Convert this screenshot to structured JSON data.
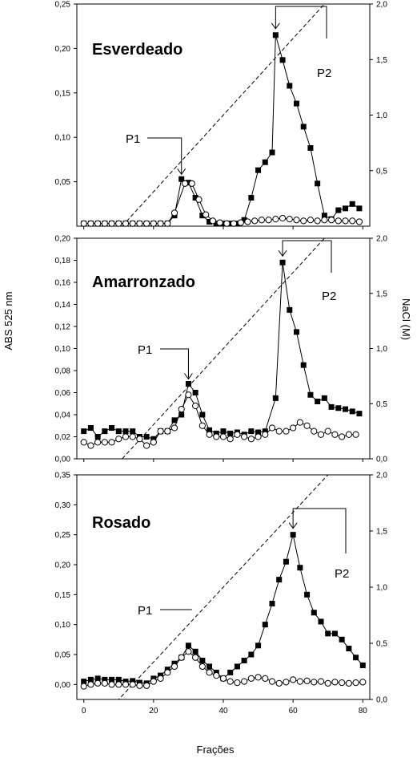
{
  "x_axis": {
    "label": "Frações",
    "ticks": [
      0,
      20,
      40,
      60,
      80
    ],
    "range": [
      -2,
      82
    ]
  },
  "left_axis_label": "ABS 525 nm",
  "right_axis_label": "NaCl (M)",
  "chart_data": [
    {
      "type": "line",
      "title": "Esverdeado",
      "xlabel": "Frações",
      "ylabel": "ABS 525 nm",
      "y2label": "NaCl (M)",
      "ylim": [
        0,
        0.25
      ],
      "y_ticks": [
        "0,05",
        "0,10",
        "0,15",
        "0,20",
        "0,25"
      ],
      "y2lim": [
        0,
        2.0
      ],
      "y2_ticks": [
        "0,5",
        "1,0",
        "1,5",
        "2,0"
      ],
      "series": [
        {
          "marker": "filled-square",
          "x": [
            0,
            2,
            4,
            6,
            8,
            10,
            12,
            14,
            16,
            18,
            20,
            22,
            24,
            26,
            28,
            30,
            32,
            34,
            36,
            38,
            40,
            42,
            44,
            46,
            48,
            50,
            52,
            54,
            55,
            57,
            59,
            61,
            63,
            65,
            67,
            69,
            71,
            73,
            75,
            77,
            79
          ],
          "y": [
            0.003,
            0.003,
            0.003,
            0.003,
            0.003,
            0.003,
            0.003,
            0.003,
            0.003,
            0.003,
            0.003,
            0.003,
            0.003,
            0.012,
            0.053,
            0.049,
            0.032,
            0.012,
            0.005,
            0.003,
            0.003,
            0.003,
            0.003,
            0.007,
            0.032,
            0.063,
            0.072,
            0.083,
            0.215,
            0.187,
            0.158,
            0.138,
            0.112,
            0.088,
            0.048,
            0.012,
            0.008,
            0.018,
            0.02,
            0.025,
            0.02
          ]
        },
        {
          "marker": "open-circle",
          "x": [
            0,
            2,
            4,
            6,
            8,
            10,
            12,
            14,
            16,
            18,
            20,
            22,
            24,
            26,
            29,
            31,
            33,
            35,
            37,
            39,
            41,
            43,
            45,
            47,
            49,
            51,
            53,
            55,
            57,
            59,
            61,
            63,
            65,
            67,
            69,
            71,
            73,
            75,
            77,
            79
          ],
          "y": [
            0.003,
            0.003,
            0.003,
            0.003,
            0.003,
            0.003,
            0.003,
            0.003,
            0.003,
            0.003,
            0.003,
            0.003,
            0.003,
            0.015,
            0.048,
            0.048,
            0.03,
            0.013,
            0.006,
            0.004,
            0.003,
            0.003,
            0.004,
            0.005,
            0.006,
            0.007,
            0.007,
            0.008,
            0.009,
            0.008,
            0.007,
            0.006,
            0.007,
            0.006,
            0.007,
            0.007,
            0.006,
            0.006,
            0.006,
            0.005
          ]
        }
      ],
      "gradient": {
        "x": [
          0,
          11,
          69,
          80
        ],
        "y": [
          0,
          0,
          2.0,
          2.0
        ]
      },
      "annotations": [
        {
          "text": "P1",
          "peak_x": 28
        },
        {
          "text": "P2",
          "peak_x": 55
        }
      ]
    },
    {
      "type": "line",
      "title": "Amarronzado",
      "xlabel": "Frações",
      "ylabel": "ABS 525 nm",
      "y2label": "NaCl (M)",
      "ylim": [
        0,
        0.2
      ],
      "y_ticks": [
        "0,00",
        "0,02",
        "0,04",
        "0,06",
        "0,08",
        "0,10",
        "0,12",
        "0,14",
        "0,16",
        "0,18",
        "0,20"
      ],
      "y2lim": [
        0,
        2.0
      ],
      "y2_ticks": [
        "0,0",
        "0,5",
        "1,0",
        "1,5",
        "2,0"
      ],
      "series": [
        {
          "marker": "filled-square",
          "x": [
            0,
            2,
            4,
            6,
            8,
            10,
            12,
            14,
            16,
            18,
            20,
            22,
            24,
            26,
            28,
            30,
            32,
            34,
            36,
            38,
            40,
            42,
            44,
            46,
            48,
            50,
            52,
            55,
            57,
            59,
            61,
            63,
            65,
            67,
            69,
            71,
            73,
            75,
            77,
            79
          ],
          "y": [
            0.025,
            0.028,
            0.02,
            0.025,
            0.028,
            0.025,
            0.025,
            0.025,
            0.02,
            0.02,
            0.018,
            0.025,
            0.025,
            0.035,
            0.04,
            0.068,
            0.06,
            0.04,
            0.026,
            0.023,
            0.025,
            0.023,
            0.024,
            0.022,
            0.025,
            0.024,
            0.025,
            0.055,
            0.178,
            0.135,
            0.115,
            0.085,
            0.058,
            0.052,
            0.055,
            0.047,
            0.046,
            0.045,
            0.043,
            0.041
          ]
        },
        {
          "marker": "open-circle",
          "x": [
            0,
            2,
            4,
            6,
            8,
            10,
            12,
            14,
            16,
            18,
            20,
            22,
            24,
            26,
            28,
            30,
            32,
            34,
            36,
            38,
            40,
            42,
            44,
            46,
            48,
            50,
            52,
            54,
            56,
            58,
            60,
            62,
            64,
            66,
            68,
            70,
            72,
            74,
            76,
            78
          ],
          "y": [
            0.015,
            0.012,
            0.015,
            0.015,
            0.015,
            0.018,
            0.02,
            0.02,
            0.018,
            0.012,
            0.015,
            0.025,
            0.025,
            0.028,
            0.045,
            0.058,
            0.048,
            0.03,
            0.022,
            0.02,
            0.02,
            0.018,
            0.022,
            0.02,
            0.018,
            0.02,
            0.022,
            0.028,
            0.025,
            0.025,
            0.028,
            0.033,
            0.03,
            0.025,
            0.022,
            0.025,
            0.022,
            0.02,
            0.022,
            0.022
          ]
        }
      ],
      "gradient": {
        "x": [
          0,
          11,
          69,
          80
        ],
        "y": [
          0,
          0,
          2.0,
          2.0
        ]
      },
      "annotations": [
        {
          "text": "P1",
          "peak_x": 30
        },
        {
          "text": "P2",
          "peak_x": 57
        }
      ]
    },
    {
      "type": "line",
      "title": "Rosado",
      "xlabel": "Frações",
      "ylabel": "ABS 525 nm",
      "y2label": "NaCl (M)",
      "ylim": [
        -0.025,
        0.35
      ],
      "y_ticks": [
        "0,00",
        "0,05",
        "0,10",
        "0,15",
        "0,20",
        "0,25",
        "0,30",
        "0,35"
      ],
      "y2lim": [
        0,
        2.0
      ],
      "y2_ticks": [
        "0,0",
        "0,5",
        "1,0",
        "1,5",
        "2,0"
      ],
      "series": [
        {
          "marker": "filled-square",
          "x": [
            0,
            2,
            4,
            6,
            8,
            10,
            12,
            14,
            16,
            18,
            20,
            22,
            24,
            26,
            28,
            30,
            32,
            34,
            36,
            38,
            40,
            42,
            44,
            46,
            48,
            50,
            52,
            54,
            56,
            58,
            60,
            62,
            64,
            66,
            68,
            70,
            72,
            74,
            76,
            78,
            80
          ],
          "y": [
            0.005,
            0.008,
            0.01,
            0.008,
            0.008,
            0.008,
            0.005,
            0.006,
            0.003,
            0.002,
            0.01,
            0.015,
            0.025,
            0.035,
            0.045,
            0.065,
            0.055,
            0.04,
            0.03,
            0.02,
            0.01,
            0.02,
            0.03,
            0.04,
            0.05,
            0.065,
            0.1,
            0.135,
            0.175,
            0.205,
            0.25,
            0.195,
            0.15,
            0.12,
            0.105,
            0.085,
            0.085,
            0.075,
            0.06,
            0.045,
            0.032
          ]
        },
        {
          "marker": "open-circle",
          "x": [
            0,
            2,
            4,
            6,
            8,
            10,
            12,
            14,
            16,
            18,
            20,
            22,
            24,
            26,
            28,
            30,
            32,
            34,
            36,
            38,
            40,
            42,
            44,
            46,
            48,
            50,
            52,
            54,
            56,
            58,
            60,
            62,
            64,
            66,
            68,
            70,
            72,
            74,
            76,
            78,
            80
          ],
          "y": [
            -0.003,
            0.0,
            0.002,
            0.002,
            0.0,
            0.0,
            0.0,
            0.0,
            -0.002,
            -0.002,
            0.005,
            0.01,
            0.02,
            0.03,
            0.045,
            0.055,
            0.045,
            0.03,
            0.02,
            0.015,
            0.01,
            0.005,
            0.003,
            0.005,
            0.01,
            0.012,
            0.01,
            0.005,
            0.002,
            0.004,
            0.008,
            0.005,
            0.006,
            0.004,
            0.005,
            0.002,
            0.004,
            0.003,
            0.002,
            0.003,
            0.004
          ]
        }
      ],
      "gradient": {
        "x": [
          0,
          10,
          70,
          80
        ],
        "y": [
          0,
          0,
          2.0,
          2.0
        ]
      },
      "annotations": [
        {
          "text": "P1",
          "peak_x": 31
        },
        {
          "text": "P2",
          "peak_x": 60
        }
      ]
    }
  ]
}
